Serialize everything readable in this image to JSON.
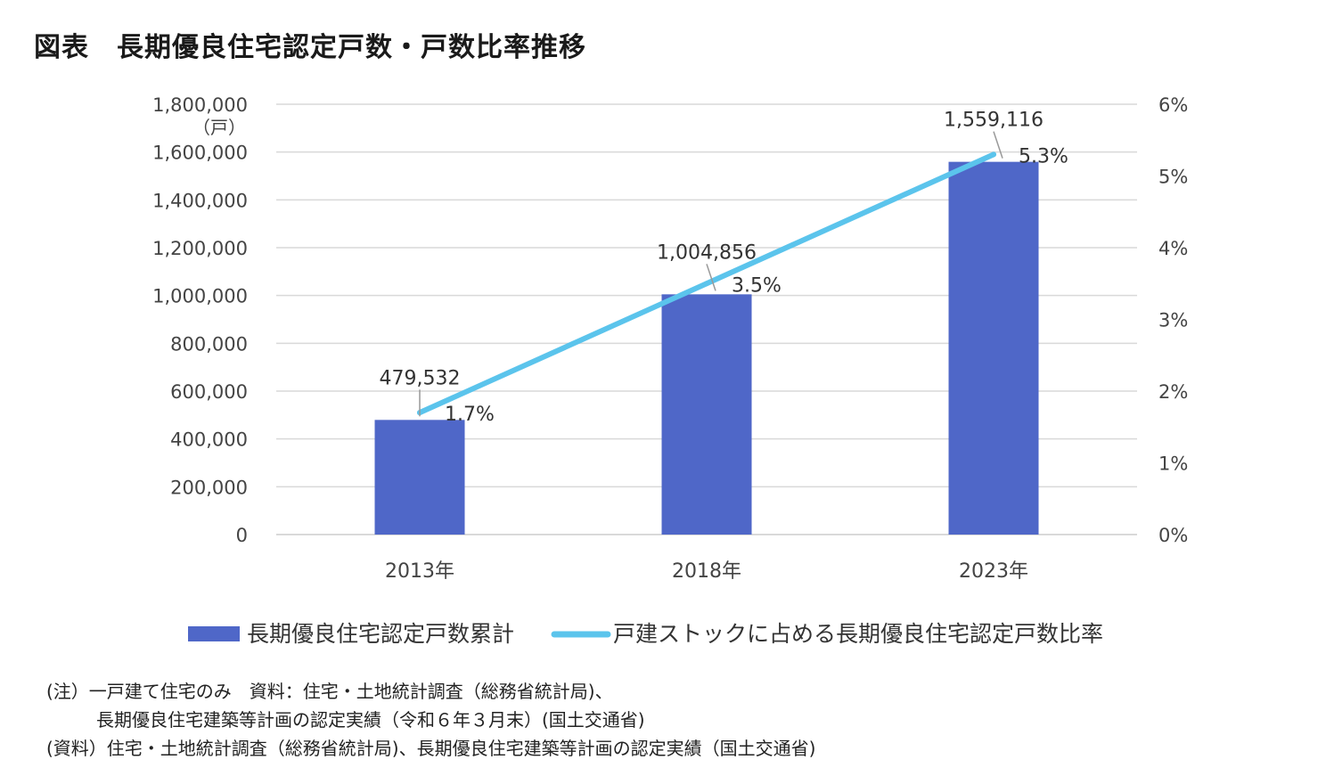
{
  "title": "図表　長期優良住宅認定戸数・戸数比率推移",
  "chart_data": {
    "type": "bar",
    "categories": [
      "2013年",
      "2018年",
      "2023年"
    ],
    "series": [
      {
        "name": "長期優良住宅認定戸数累計",
        "type": "bar",
        "axis": "left",
        "color": "#4f67c8",
        "values": [
          479532,
          1004856,
          1559116
        ],
        "labels": [
          "479,532",
          "1,004,856",
          "1,559,116"
        ]
      },
      {
        "name": "戸建ストックに占める長期優良住宅認定戸数比率",
        "type": "line",
        "axis": "right",
        "color": "#5bc4ec",
        "values": [
          1.7,
          3.5,
          5.3
        ],
        "labels": [
          "1.7%",
          "3.5%",
          "5.3%"
        ]
      }
    ],
    "y_left": {
      "min": 0,
      "max": 1800000,
      "step": 200000,
      "unit": "（戸）",
      "tick_labels": [
        "0",
        "200,000",
        "400,000",
        "600,000",
        "800,000",
        "1,000,000",
        "1,200,000",
        "1,400,000",
        "1,600,000",
        "1,800,000"
      ]
    },
    "y_right": {
      "min": 0,
      "max": 6,
      "step": 1,
      "tick_labels": [
        "0%",
        "1%",
        "2%",
        "3%",
        "4%",
        "5%",
        "6%"
      ]
    },
    "grid": true,
    "legend": "bottom"
  },
  "notes": [
    "(注）一戸建て住宅のみ　資料：住宅・土地統計調査（総務省統計局)、",
    "長期優良住宅建築等計画の認定実績（令和６年３月末）(国土交通省)",
    "(資料）住宅・土地統計調査（総務省統計局)、長期優良住宅建築等計画の認定実績（国土交通省)"
  ]
}
